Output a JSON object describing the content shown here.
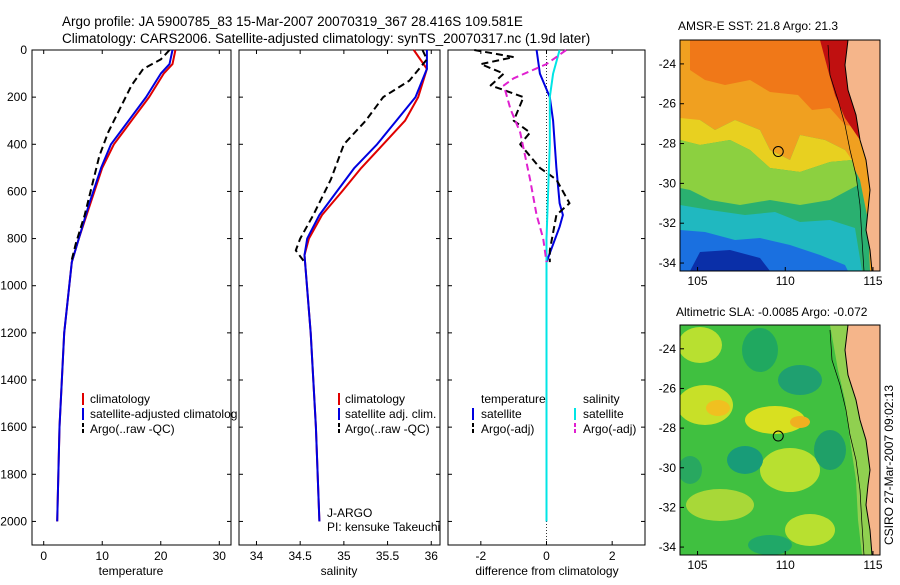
{
  "header": {
    "line1": "Argo profile: JA 5900785_83 15-Mar-2007 20070319_367 28.416S 109.581E",
    "line2": "Climatology: CARS2006. Satellite-adjusted climatology: synTS_20070317.nc (1.9d later)"
  },
  "side_label": "CSIRO 27-Mar-2007 09:02:13",
  "colors": {
    "red": "#e00000",
    "blue": "#0000e0",
    "black": "#000000",
    "cyan": "#00e5e5",
    "magenta": "#e020d0"
  },
  "chart_data": [
    {
      "type": "line",
      "name": "temperature-profile",
      "xlabel": "temperature",
      "ylabel": "",
      "xlim": [
        -2,
        32
      ],
      "ylim": [
        2100,
        0
      ],
      "xticks": [
        0,
        10,
        20,
        30
      ],
      "yticks": [
        0,
        200,
        400,
        600,
        800,
        1000,
        1200,
        1400,
        1600,
        1800,
        2000
      ],
      "legend": [
        "climatology",
        "satellite-adjusted climatolog",
        "Argo(..raw -QC)"
      ],
      "series": [
        {
          "name": "climatology",
          "color": "red",
          "dash": false,
          "x": [
            22.5,
            22.0,
            20.5,
            18.0,
            15.0,
            12.0,
            10.0,
            8.0,
            6.0,
            4.8,
            3.5,
            2.7,
            2.3
          ],
          "y": [
            0,
            60,
            100,
            200,
            300,
            400,
            500,
            650,
            800,
            900,
            1200,
            1600,
            2000
          ]
        },
        {
          "name": "satellite-adjusted",
          "color": "blue",
          "dash": false,
          "x": [
            22.0,
            21.5,
            20.0,
            17.5,
            14.5,
            11.5,
            9.8,
            7.8,
            6.0,
            4.8,
            3.5,
            2.7,
            2.3
          ],
          "y": [
            0,
            60,
            100,
            200,
            300,
            400,
            500,
            650,
            800,
            900,
            1200,
            1600,
            2000
          ]
        },
        {
          "name": "Argo",
          "color": "black",
          "dash": true,
          "x": [
            21.5,
            20.0,
            17.0,
            15.0,
            13.0,
            11.0,
            9.5,
            8.5,
            7.0,
            5.5,
            4.7
          ],
          "y": [
            0,
            40,
            80,
            150,
            250,
            350,
            450,
            550,
            700,
            820,
            900
          ]
        }
      ]
    },
    {
      "type": "line",
      "name": "salinity-profile",
      "xlabel": "salinity",
      "xlim": [
        33.8,
        36.1
      ],
      "ylim": [
        2100,
        0
      ],
      "xticks": [
        34,
        34.5,
        35,
        35.5,
        36
      ],
      "legend": [
        "climatology",
        "satellite adj. clim.",
        "Argo(..raw -QC)"
      ],
      "annotations": [
        "J-ARGO",
        "PI: kensuke Takeuchi"
      ],
      "series": [
        {
          "name": "climatology",
          "color": "red",
          "dash": false,
          "x": [
            35.8,
            35.95,
            35.85,
            35.7,
            35.45,
            35.2,
            34.98,
            34.75,
            34.6,
            34.55,
            34.62,
            34.68,
            34.72
          ],
          "y": [
            0,
            80,
            200,
            300,
            400,
            500,
            600,
            700,
            800,
            870,
            1200,
            1600,
            2000
          ]
        },
        {
          "name": "satellite-adjusted",
          "color": "blue",
          "dash": false,
          "x": [
            35.95,
            35.95,
            35.82,
            35.6,
            35.38,
            35.12,
            34.92,
            34.72,
            34.58,
            34.55,
            34.62,
            34.68,
            34.72
          ],
          "y": [
            0,
            80,
            200,
            300,
            400,
            500,
            600,
            700,
            800,
            870,
            1200,
            1600,
            2000
          ]
        },
        {
          "name": "Argo",
          "color": "black",
          "dash": true,
          "x": [
            35.9,
            35.95,
            35.75,
            35.45,
            35.25,
            35.0,
            34.85,
            34.65,
            34.5,
            34.45,
            34.55
          ],
          "y": [
            0,
            40,
            130,
            200,
            300,
            400,
            550,
            700,
            800,
            850,
            900
          ]
        }
      ]
    },
    {
      "type": "line",
      "name": "difference-profile",
      "xlabel": "difference from climatology",
      "xlim": [
        -3.0,
        3.0
      ],
      "ylim": [
        2100,
        0
      ],
      "xticks": [
        -2,
        0,
        2
      ],
      "legend_groups": [
        {
          "title": "temperature",
          "items": [
            "satellite",
            "Argo(-adj)"
          ]
        },
        {
          "title": "salinity",
          "items": [
            "satellite",
            "Argo(-adj)"
          ]
        }
      ],
      "series": [
        {
          "name": "temperature satellite",
          "color": "blue",
          "dash": false,
          "x": [
            -0.3,
            -0.2,
            0.1,
            0.2,
            0.3,
            0.4,
            0.5,
            0.4,
            0.0,
            0.0,
            0.0
          ],
          "y": [
            0,
            100,
            200,
            300,
            500,
            650,
            700,
            750,
            900,
            1200,
            2000
          ]
        },
        {
          "name": "temperature Argo",
          "color": "black",
          "dash": true,
          "x": [
            -2.2,
            -1.0,
            -2.0,
            -1.3,
            -1.7,
            -0.7,
            -1.0,
            -0.5,
            -0.8,
            -0.2,
            0.3,
            0.7,
            0.3,
            0.1,
            0.1
          ],
          "y": [
            0,
            30,
            60,
            100,
            150,
            200,
            300,
            350,
            400,
            500,
            550,
            650,
            700,
            850,
            900
          ]
        },
        {
          "name": "salinity satellite",
          "color": "cyan",
          "dash": false,
          "x": [
            0.4,
            0.2,
            0.1,
            0.1,
            0.0,
            0.0,
            0.0
          ],
          "y": [
            0,
            100,
            200,
            400,
            800,
            1200,
            2000
          ]
        },
        {
          "name": "salinity Argo",
          "color": "magenta",
          "dash": true,
          "x": [
            0.6,
            0.0,
            -1.0,
            -1.3,
            -1.1,
            -0.8,
            -0.5,
            -0.3,
            -0.1,
            0.0
          ],
          "y": [
            0,
            60,
            120,
            150,
            250,
            350,
            550,
            700,
            800,
            900
          ]
        }
      ]
    },
    {
      "type": "heatmap",
      "name": "sst-map",
      "title": "AMSR-E SST: 21.8 Argo: 21.3",
      "xlim": [
        104,
        115.4
      ],
      "ylim": [
        -34.4,
        -22.8
      ],
      "xticks": [
        105,
        110,
        115
      ],
      "yticks": [
        -24,
        -26,
        -28,
        -30,
        -32,
        -34
      ],
      "marker": [
        109.6,
        -28.4
      ]
    },
    {
      "type": "heatmap",
      "name": "sla-map",
      "title": "Altimetric SLA: -0.0085 Argo: -0.072",
      "xlim": [
        104,
        115.4
      ],
      "ylim": [
        -34.4,
        -22.8
      ],
      "xticks": [
        105,
        110,
        115
      ],
      "yticks": [
        -24,
        -26,
        -28,
        -30,
        -32,
        -34
      ],
      "marker": [
        109.6,
        -28.4
      ]
    }
  ]
}
